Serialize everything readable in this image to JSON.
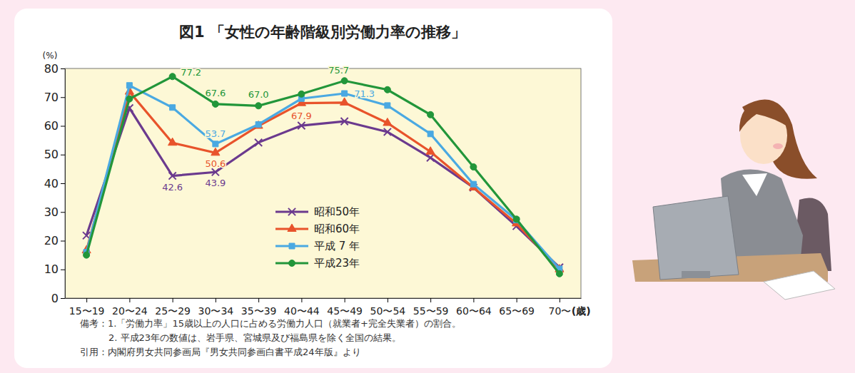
{
  "chart_data": {
    "type": "line",
    "title": "図1 「女性の年齢階級別労働力率の推移」",
    "y_label": "(%)",
    "x_label": "(歳)",
    "categories": [
      "15〜19",
      "20〜24",
      "25〜29",
      "30〜34",
      "35〜39",
      "40〜44",
      "45〜49",
      "50〜54",
      "55〜59",
      "60〜64",
      "65〜69",
      "70〜"
    ],
    "ylim": [
      0,
      80
    ],
    "yticks": [
      0,
      10,
      20,
      30,
      40,
      50,
      60,
      70,
      80
    ],
    "grid": false,
    "legend": "center",
    "data_labels": true,
    "series": [
      {
        "name": "昭和50年",
        "color": "#6b3a8e",
        "marker": "x",
        "line_style": "solid",
        "values": [
          21.8,
          66.2,
          42.6,
          43.9,
          54.2,
          60.1,
          61.6,
          57.9,
          48.9,
          38.5,
          25.1,
          10.7
        ],
        "value_labels": [
          null,
          null,
          "42.6",
          "43.9",
          null,
          null,
          null,
          null,
          null,
          null,
          null,
          null
        ]
      },
      {
        "name": "昭和60年",
        "color": "#e8532b",
        "marker": "triangle",
        "line_style": "solid",
        "values": [
          16.6,
          71.9,
          54.1,
          50.6,
          60.0,
          67.9,
          68.1,
          61.0,
          51.0,
          38.5,
          26.0,
          10.0
        ],
        "value_labels": [
          null,
          null,
          null,
          "50.6",
          null,
          "67.9",
          null,
          null,
          null,
          null,
          null,
          null
        ]
      },
      {
        "name": "平成 7 年",
        "color": "#4aa9e2",
        "marker": "square",
        "line_style": "solid",
        "values": [
          16.0,
          74.1,
          66.4,
          53.7,
          60.5,
          69.5,
          71.3,
          67.1,
          57.2,
          39.7,
          27.2,
          10.2
        ],
        "value_labels": [
          null,
          null,
          null,
          "53.7",
          null,
          null,
          "71.3",
          null,
          null,
          null,
          null,
          null
        ]
      },
      {
        "name": "平成23年",
        "color": "#22963a",
        "marker": "circle",
        "line_style": "solid",
        "values": [
          15.0,
          69.4,
          77.2,
          67.6,
          67.0,
          71.1,
          75.7,
          72.6,
          63.9,
          45.7,
          27.5,
          8.5
        ],
        "value_labels": [
          null,
          null,
          "77.2",
          "67.6",
          "67.0",
          null,
          "75.7",
          null,
          null,
          null,
          null,
          null
        ]
      }
    ],
    "notes": [
      "備考：1.「労働力率」15歳以上の人口に占める労働力人口（就業者+完全失業者）の割合。",
      "2. 平成23年の数値は、岩手県、宮城県及び福島県を除く全国の結果。",
      "引用：内閣府男女共同参画局『男女共同参画白書平成24年版』より"
    ]
  }
}
